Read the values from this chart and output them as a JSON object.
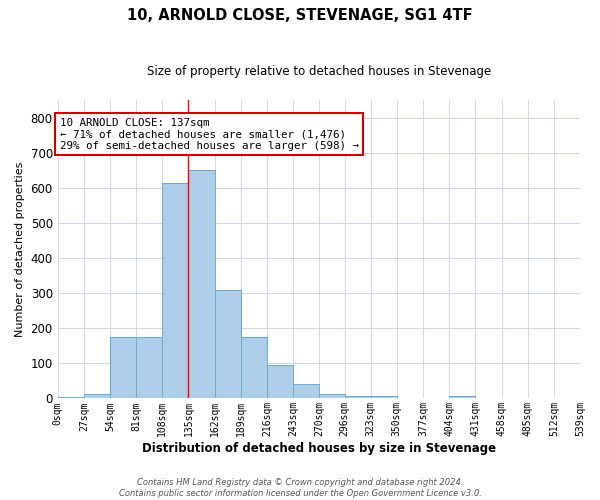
{
  "title1": "10, ARNOLD CLOSE, STEVENAGE, SG1 4TF",
  "title2": "Size of property relative to detached houses in Stevenage",
  "xlabel": "Distribution of detached houses by size in Stevenage",
  "ylabel": "Number of detached properties",
  "bin_edges": [
    0,
    27,
    54,
    81,
    108,
    135,
    162,
    189,
    216,
    243,
    270,
    296,
    323,
    350,
    377,
    404,
    431,
    458,
    485,
    512,
    539
  ],
  "bar_heights": [
    5,
    12,
    175,
    175,
    615,
    650,
    310,
    175,
    95,
    42,
    12,
    8,
    8,
    0,
    0,
    8,
    0,
    0,
    0,
    0
  ],
  "bar_color": "#aecde8",
  "bar_edge_color": "#6aaad4",
  "red_line_x": 135,
  "ylim": [
    0,
    850
  ],
  "yticks": [
    0,
    100,
    200,
    300,
    400,
    500,
    600,
    700,
    800
  ],
  "annotation_text": "10 ARNOLD CLOSE: 137sqm\n← 71% of detached houses are smaller (1,476)\n29% of semi-detached houses are larger (598) →",
  "annotation_box_color": "#ffffff",
  "annotation_box_edge": "#cc0000",
  "footer_text": "Contains HM Land Registry data © Crown copyright and database right 2024.\nContains public sector information licensed under the Open Government Licence v3.0.",
  "tick_labels": [
    "0sqm",
    "27sqm",
    "54sqm",
    "81sqm",
    "108sqm",
    "135sqm",
    "162sqm",
    "189sqm",
    "216sqm",
    "243sqm",
    "270sqm",
    "296sqm",
    "323sqm",
    "350sqm",
    "377sqm",
    "404sqm",
    "431sqm",
    "458sqm",
    "485sqm",
    "512sqm",
    "539sqm"
  ],
  "background_color": "#ffffff",
  "grid_color": "#ccd8ea"
}
